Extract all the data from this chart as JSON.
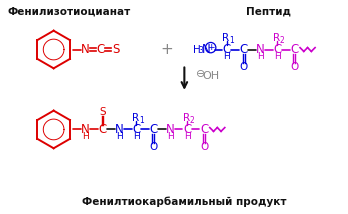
{
  "title_left": "Фенилизотиоцианат",
  "title_right": "Пептид",
  "title_bottom": "Фенилтиокарбамильный продукт",
  "bg_color": "#ffffff",
  "red": "#dd0000",
  "blue": "#0000dd",
  "magenta": "#cc00cc",
  "black": "#111111",
  "gray": "#888888",
  "figw": 3.48,
  "figh": 2.14,
  "dpi": 100
}
